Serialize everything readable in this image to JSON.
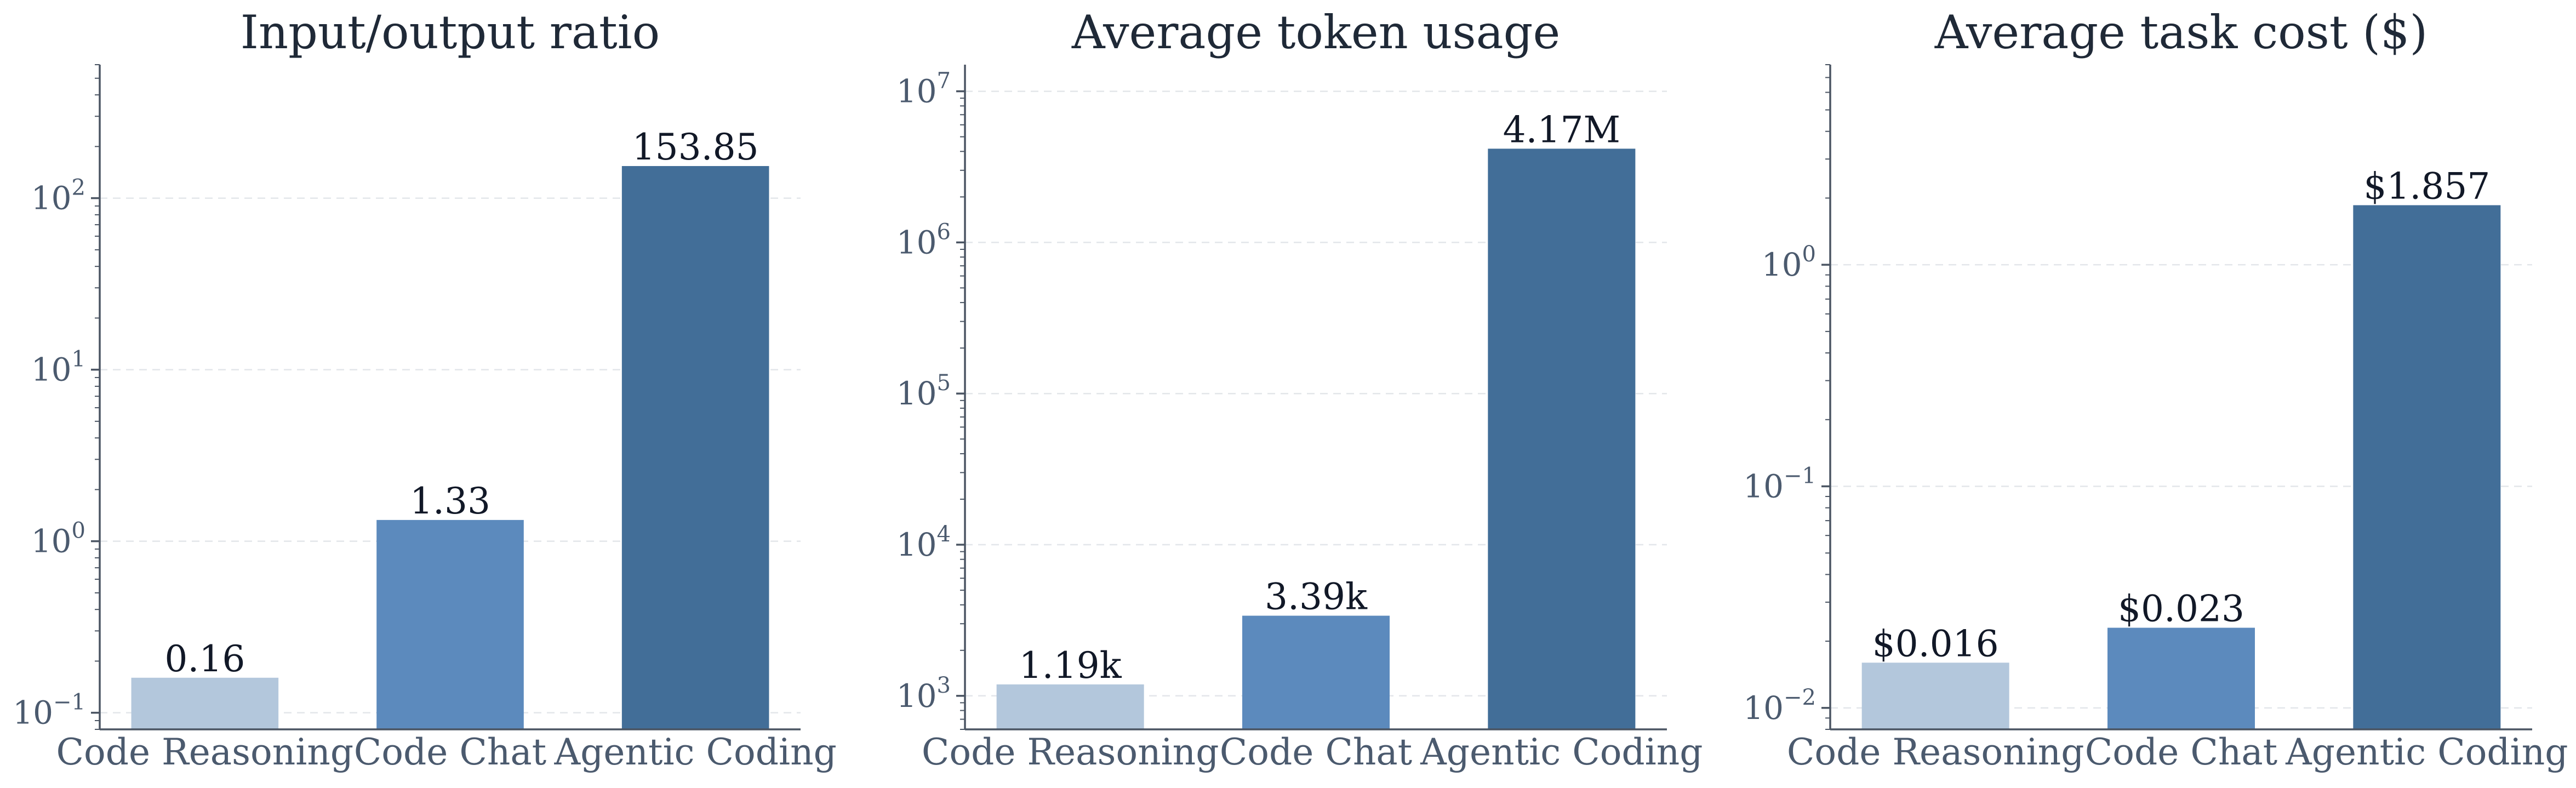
{
  "chart_data": [
    {
      "type": "bar",
      "title": "Input/output ratio",
      "scale": "log",
      "ylim": [
        0.08,
        600
      ],
      "yticks": [
        {
          "value": 0.1,
          "exp": "−1"
        },
        {
          "value": 1,
          "exp": "0"
        },
        {
          "value": 10,
          "exp": "1"
        },
        {
          "value": 100,
          "exp": "2"
        }
      ],
      "categories": [
        "Code Reasoning",
        "Code Chat",
        "Agentic Coding"
      ],
      "values": [
        0.16,
        1.33,
        153.85
      ],
      "labels": [
        "0.16",
        "1.33",
        "153.85"
      ],
      "colors": [
        "#b3c7dc",
        "#5c8abd",
        "#426e98"
      ],
      "grid": true
    },
    {
      "type": "bar",
      "title": "Average token usage",
      "scale": "log",
      "ylim": [
        600,
        15000000
      ],
      "yticks": [
        {
          "value": 1000,
          "exp": "3"
        },
        {
          "value": 10000,
          "exp": "4"
        },
        {
          "value": 100000,
          "exp": "5"
        },
        {
          "value": 1000000,
          "exp": "6"
        },
        {
          "value": 10000000,
          "exp": "7"
        }
      ],
      "categories": [
        "Code Reasoning",
        "Code Chat",
        "Agentic Coding"
      ],
      "values": [
        1190,
        3390,
        4170000
      ],
      "labels": [
        "1.19k",
        "3.39k",
        "4.17M"
      ],
      "colors": [
        "#b3c7dc",
        "#5c8abd",
        "#426e98"
      ],
      "grid": true
    },
    {
      "type": "bar",
      "title": "Average task cost ($)",
      "scale": "log",
      "ylim": [
        0.008,
        8
      ],
      "yticks": [
        {
          "value": 0.01,
          "exp": "−2"
        },
        {
          "value": 0.1,
          "exp": "−1"
        },
        {
          "value": 1,
          "exp": "0"
        }
      ],
      "categories": [
        "Code Reasoning",
        "Code Chat",
        "Agentic Coding"
      ],
      "values": [
        0.016,
        0.023,
        1.857
      ],
      "labels": [
        "$0.016",
        "$0.023",
        "$1.857"
      ],
      "colors": [
        "#b3c7dc",
        "#5c8abd",
        "#426e98"
      ],
      "grid": true
    }
  ]
}
